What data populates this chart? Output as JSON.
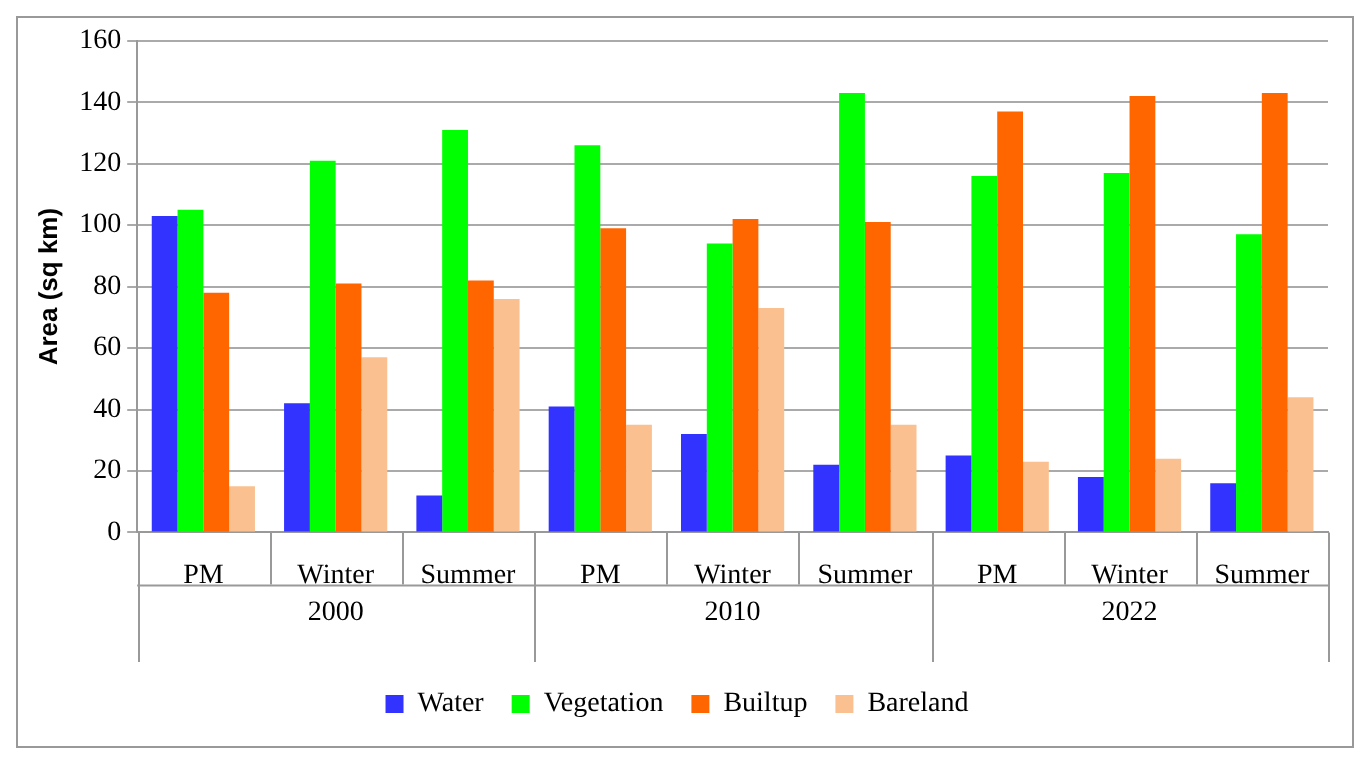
{
  "chart_data": {
    "type": "bar",
    "ylabel": "Area (sq km)",
    "categories": [
      "PM",
      "Winter",
      "Summer",
      "PM",
      "Winter",
      "Summer",
      "PM",
      "Winter",
      "Summer"
    ],
    "annotations": [
      "2000",
      "2010",
      "2022"
    ],
    "series": [
      {
        "name": "Water",
        "color": "#3333ff",
        "values": [
          103,
          42,
          12,
          41,
          32,
          22,
          25,
          18,
          16
        ]
      },
      {
        "name": "Vegetation",
        "color": "#00ff00",
        "values": [
          105,
          121,
          131,
          126,
          94,
          143,
          116,
          117,
          97
        ]
      },
      {
        "name": "Builtup",
        "color": "#ff6600",
        "values": [
          78,
          81,
          82,
          99,
          102,
          101,
          137,
          142,
          143
        ]
      },
      {
        "name": "Bareland",
        "color": "#fac090",
        "values": [
          15,
          57,
          76,
          35,
          73,
          35,
          23,
          24,
          44
        ]
      }
    ],
    "ylim": [
      0,
      160
    ],
    "yticks": [
      0,
      20,
      40,
      60,
      80,
      100,
      120,
      140,
      160
    ],
    "grid": "y",
    "legend": "bottom"
  }
}
